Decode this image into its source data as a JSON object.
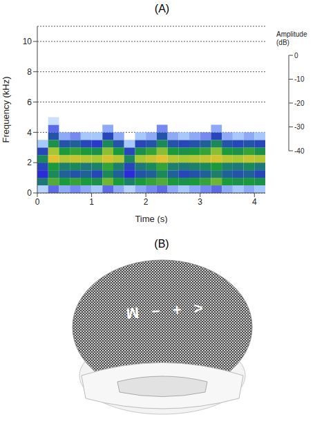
{
  "chart_data": {
    "type": "heatmap",
    "title": "(A)",
    "x_label": "Time (s)",
    "y_label": "Frequency (kHz)",
    "xlim": [
      0,
      4.2
    ],
    "xticks": [
      0,
      1,
      2,
      3,
      4
    ],
    "ylim": [
      0,
      11
    ],
    "yticks": [
      0,
      2,
      4,
      6,
      8,
      10
    ],
    "grid": true,
    "cells": {
      "time_bins": [
        0,
        0.2,
        0.4,
        0.6,
        0.8,
        1.0,
        1.2,
        1.4,
        1.6,
        1.8,
        2.0,
        2.2,
        2.4,
        2.6,
        2.8,
        3.0,
        3.2,
        3.4,
        3.6,
        3.8,
        4.0,
        4.2
      ],
      "frequency_bins": [
        0,
        0.5,
        1.0,
        1.5,
        2.0,
        2.5,
        3.0,
        3.5,
        4.0,
        4.5,
        5.0
      ],
      "values": [
        [
          -36,
          -32,
          -34,
          -33,
          -34,
          -35,
          -32,
          -34,
          -36,
          -34,
          -33,
          -32,
          -34,
          -35,
          -34,
          -33,
          -32,
          -34,
          -35,
          -34,
          -35
        ],
        [
          -24,
          -18,
          -20,
          -19,
          -20,
          -21,
          -17,
          -20,
          -23,
          -20,
          -19,
          -18,
          -20,
          -21,
          -20,
          -19,
          -17,
          -20,
          -21,
          -20,
          -21
        ],
        [
          -30,
          -22,
          -26,
          -27,
          -26,
          -28,
          -22,
          -26,
          -30,
          -27,
          -26,
          -22,
          -26,
          -28,
          -27,
          -26,
          -23,
          -26,
          -27,
          -26,
          -28
        ],
        [
          -28,
          -20,
          -23,
          -22,
          -24,
          -23,
          -19,
          -23,
          -28,
          -24,
          -22,
          -19,
          -23,
          -24,
          -23,
          -22,
          -20,
          -23,
          -24,
          -22,
          -24
        ],
        [
          -22,
          -11,
          -14,
          -13,
          -14,
          -15,
          -12,
          -14,
          -22,
          -15,
          -13,
          -11,
          -14,
          -15,
          -14,
          -13,
          -12,
          -14,
          -15,
          -13,
          -14
        ],
        [
          -28,
          -15,
          -20,
          -19,
          -20,
          -21,
          -16,
          -20,
          -28,
          -21,
          -19,
          -16,
          -20,
          -21,
          -20,
          -19,
          -16,
          -20,
          -21,
          -19,
          -21
        ],
        [
          -35,
          -21,
          -27,
          -26,
          -28,
          -29,
          -22,
          -27,
          -35,
          -28,
          -27,
          -22,
          -27,
          -28,
          -27,
          -26,
          -22,
          -27,
          -28,
          -27,
          -28
        ],
        [
          null,
          -27,
          -34,
          -33,
          -35,
          -35,
          -28,
          -34,
          null,
          -35,
          -34,
          -27,
          -34,
          -35,
          -34,
          -33,
          -28,
          -34,
          -35,
          -34,
          -35
        ],
        [
          null,
          -32,
          null,
          null,
          null,
          null,
          -34,
          null,
          null,
          null,
          null,
          -33,
          null,
          null,
          null,
          null,
          -34,
          null,
          null,
          null,
          null
        ],
        [
          null,
          -37,
          null,
          null,
          null,
          null,
          null,
          null,
          null,
          null,
          null,
          null,
          null,
          null,
          null,
          null,
          null,
          null,
          null,
          null,
          null
        ]
      ]
    },
    "colorbar": {
      "title": "Amplitude (dB)",
      "range": [
        -40,
        0
      ],
      "ticks": [
        0,
        -10,
        -20,
        -30,
        -40
      ]
    }
  },
  "image": {
    "label": "(B)",
    "device_text": "< + − M"
  }
}
